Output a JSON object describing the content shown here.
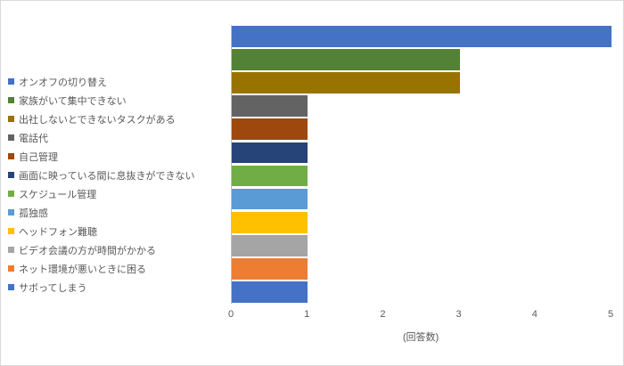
{
  "chart_data": {
    "type": "bar",
    "orientation": "horizontal",
    "title": "",
    "categories": [
      "オンオフの切り替え",
      "家族がいて集中できない",
      "出社しないとできないタスクがある",
      "電話代",
      "自己管理",
      "画面に映っている間に息抜きができない",
      "スケジュール管理",
      "孤独感",
      "ヘッドフォン難聴",
      "ビデオ会議の方が時間がかかる",
      "ネット環境が悪いときに困る",
      "サボってしまう"
    ],
    "values": [
      5,
      3,
      3,
      1,
      1,
      1,
      1,
      1,
      1,
      1,
      1,
      1
    ],
    "colors": [
      "#4472C4",
      "#538135",
      "#997300",
      "#636363",
      "#9E480E",
      "#264478",
      "#70AD47",
      "#5B9BD5",
      "#FFC000",
      "#A5A5A5",
      "#ED7D31",
      "#4472C4"
    ],
    "xlabel": "(回答数)",
    "ylabel": "",
    "xlim": [
      0,
      5
    ],
    "xticks": [
      "0",
      "1",
      "2",
      "3",
      "4",
      "5"
    ],
    "grid": false,
    "legend_position": "left",
    "axis_line_color": "#bfbfbf",
    "text_color": "#595959"
  }
}
